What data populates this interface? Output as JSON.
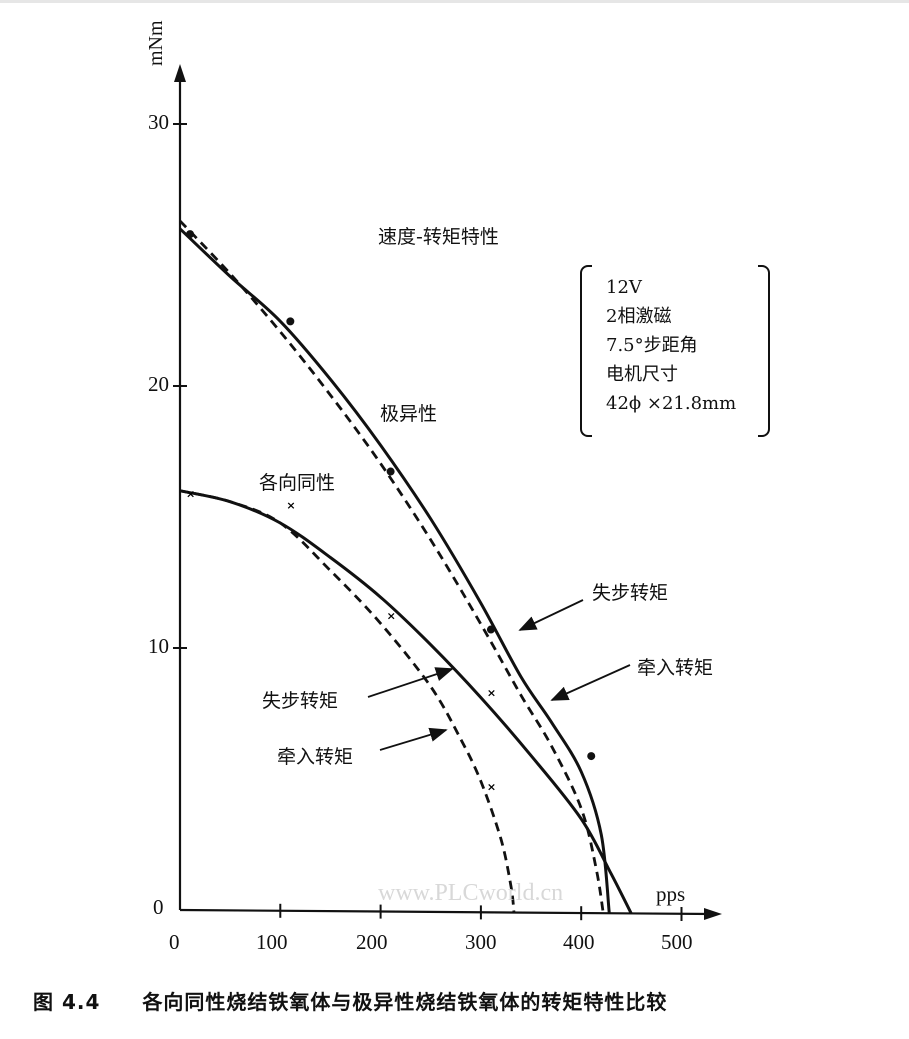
{
  "figure": {
    "caption_label": "图 4.4",
    "caption_text": "各向同性烧结铁氧体与极异性烧结铁氧体的转矩特性比较",
    "watermark": "www.PLCworld.cn",
    "inner_title": "速度-转矩特性",
    "params": [
      "12V",
      "2相激磁",
      "7.5°步距角",
      "电机尺寸",
      "42ϕ ×21.8mm"
    ],
    "annotations": {
      "anisotropic": "极异性",
      "isotropic": "各向同性",
      "aniso_pullout": "失步转矩",
      "aniso_pullin": "牵入转矩",
      "iso_pullout": "失步转矩",
      "iso_pullin": "牵入转矩"
    }
  },
  "chart_data": {
    "type": "line",
    "title": "速度-转矩特性",
    "xlabel": "pps",
    "ylabel": "mNm",
    "xlim": [
      0,
      500
    ],
    "ylim": [
      0,
      30
    ],
    "xticks": [
      0,
      100,
      200,
      300,
      400,
      500
    ],
    "yticks": [
      0,
      10,
      20,
      30
    ],
    "grid": false,
    "legend": "inline annotations",
    "series": [
      {
        "name": "极异性 失步转矩",
        "style": "solid",
        "x": [
          0,
          50,
          100,
          150,
          200,
          250,
          300,
          340,
          370,
          400,
          420,
          428
        ],
        "y": [
          26,
          24.2,
          22.5,
          20.3,
          17.8,
          15,
          11.8,
          9,
          7.3,
          5.4,
          3,
          0
        ]
      },
      {
        "name": "极异性 牵入转矩",
        "style": "dashed",
        "x": [
          0,
          50,
          100,
          150,
          200,
          250,
          300,
          340,
          370,
          400,
          415,
          422
        ],
        "y": [
          26.3,
          24.3,
          22.1,
          19.7,
          17.1,
          14.2,
          11,
          8.3,
          6.4,
          4,
          1.7,
          0
        ]
      },
      {
        "name": "各向同性 失步转矩",
        "style": "solid",
        "x": [
          0,
          50,
          100,
          150,
          200,
          250,
          300,
          350,
          400,
          430,
          450
        ],
        "y": [
          16,
          15.6,
          14.8,
          13.5,
          12,
          10.2,
          8.2,
          6,
          3.6,
          1.5,
          0
        ]
      },
      {
        "name": "各向同性 牵入转矩",
        "style": "dashed",
        "x": [
          0,
          50,
          100,
          150,
          200,
          250,
          280,
          300,
          320,
          330,
          333
        ],
        "y": [
          16,
          15.6,
          14.8,
          13,
          11,
          8.6,
          6.6,
          5,
          2.8,
          1,
          0
        ]
      }
    ],
    "markers": [
      {
        "series": "极异性",
        "x": [
          10,
          110,
          210,
          310,
          410
        ],
        "y": [
          25.8,
          22.5,
          16.8,
          10.8,
          6.0
        ],
        "shape": "dot"
      },
      {
        "series": "各向同性",
        "x": [
          10,
          110,
          210,
          310,
          310
        ],
        "y": [
          15.9,
          15.5,
          11.3,
          8.4,
          4.8
        ],
        "shape": "x"
      }
    ]
  }
}
